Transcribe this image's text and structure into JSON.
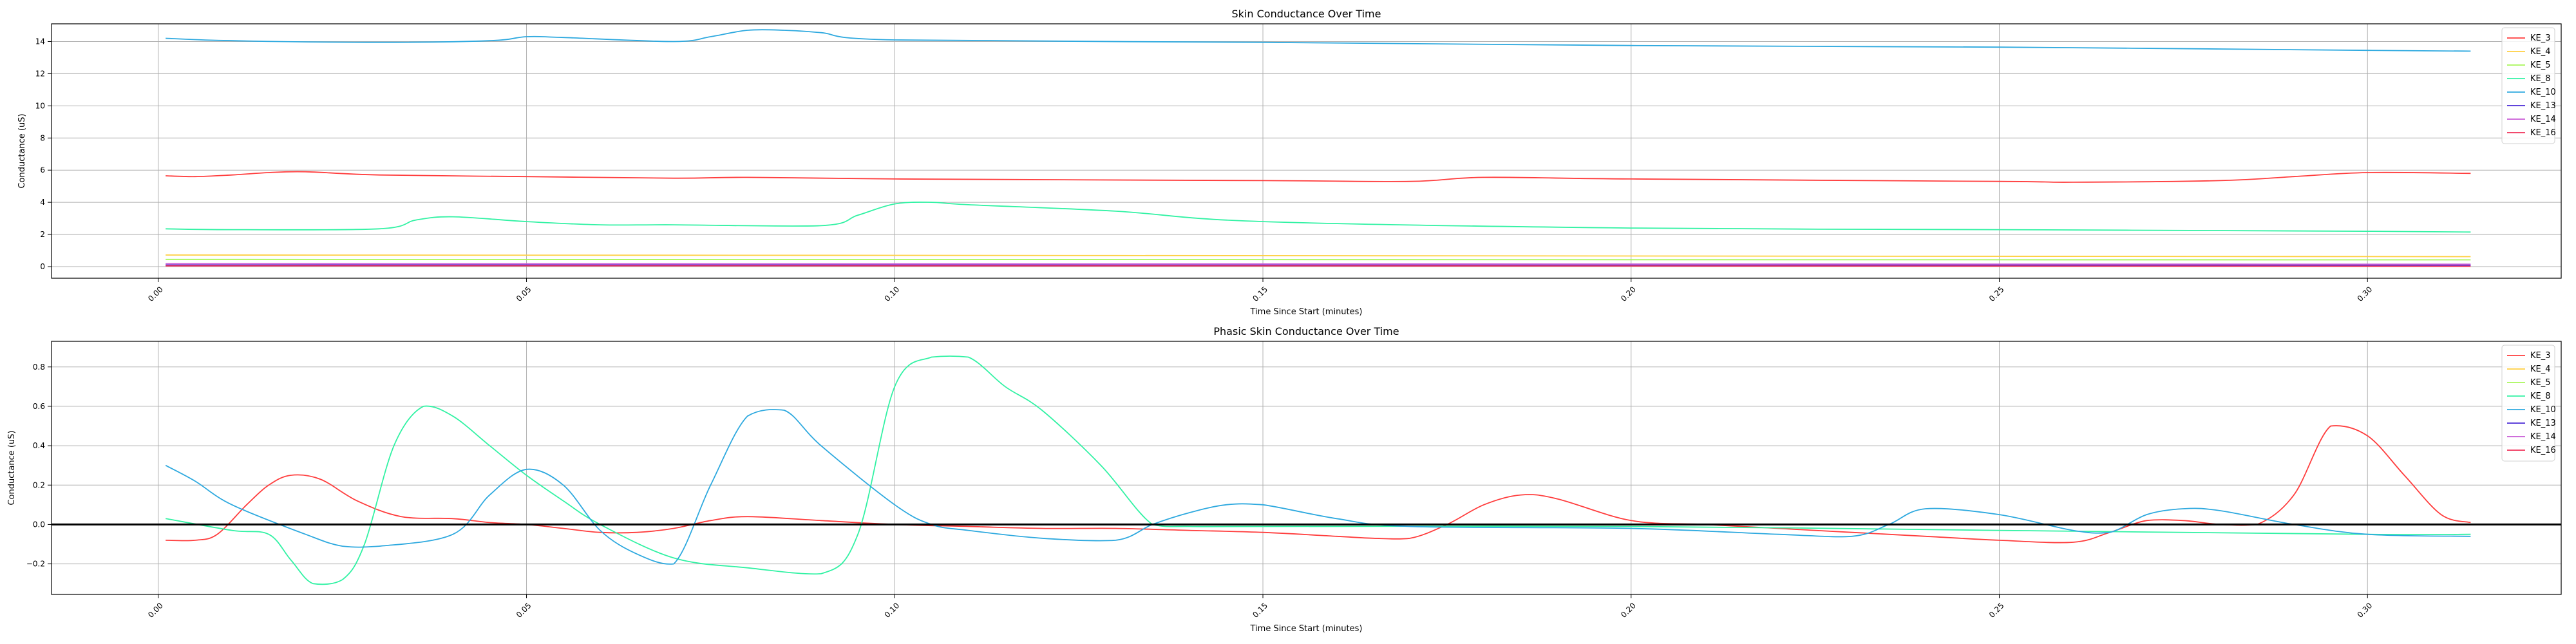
{
  "chart_data": [
    {
      "type": "line",
      "title": "Skin Conductance Over Time",
      "xlabel": "Time Since Start (minutes)",
      "ylabel": "Conductance (uS)",
      "xlim": [
        -0.0145,
        0.3263
      ],
      "ylim": [
        -0.72,
        15.1
      ],
      "xticks": [
        0.0,
        0.05,
        0.1,
        0.15,
        0.2,
        0.25,
        0.3
      ],
      "xtick_labels": [
        "0.00",
        "0.05",
        "0.10",
        "0.15",
        "0.20",
        "0.25",
        "0.30"
      ],
      "yticks": [
        0,
        2,
        4,
        6,
        8,
        10,
        12,
        14
      ],
      "ytick_labels": [
        "0",
        "2",
        "4",
        "6",
        "8",
        "10",
        "12",
        "14"
      ],
      "grid": true,
      "legend_position": "top-right",
      "series": [
        {
          "name": "KE_3",
          "color": "#ff3d3d",
          "x": [
            0.001,
            0.005,
            0.01,
            0.015,
            0.02,
            0.03,
            0.05,
            0.07,
            0.08,
            0.1,
            0.15,
            0.17,
            0.18,
            0.2,
            0.25,
            0.26,
            0.28,
            0.29,
            0.3,
            0.314
          ],
          "y": [
            5.65,
            5.6,
            5.7,
            5.85,
            5.9,
            5.7,
            5.6,
            5.5,
            5.55,
            5.45,
            5.35,
            5.3,
            5.55,
            5.45,
            5.3,
            5.25,
            5.35,
            5.6,
            5.85,
            5.8
          ]
        },
        {
          "name": "KE_4",
          "color": "#ffcf40",
          "x": [
            0.001,
            0.1,
            0.2,
            0.314
          ],
          "y": [
            0.72,
            0.7,
            0.66,
            0.62
          ]
        },
        {
          "name": "KE_5",
          "color": "#a8f75a",
          "x": [
            0.001,
            0.1,
            0.2,
            0.314
          ],
          "y": [
            0.45,
            0.44,
            0.43,
            0.42
          ]
        },
        {
          "name": "KE_8",
          "color": "#32f2a4",
          "x": [
            0.001,
            0.01,
            0.03,
            0.035,
            0.04,
            0.05,
            0.06,
            0.07,
            0.09,
            0.095,
            0.1,
            0.105,
            0.11,
            0.13,
            0.15,
            0.2,
            0.25,
            0.3,
            0.314
          ],
          "y": [
            2.35,
            2.3,
            2.35,
            2.9,
            3.1,
            2.8,
            2.6,
            2.6,
            2.55,
            3.2,
            3.9,
            4.0,
            3.85,
            3.45,
            2.8,
            2.4,
            2.3,
            2.2,
            2.15
          ]
        },
        {
          "name": "KE_10",
          "color": "#2ea9df",
          "x": [
            0.001,
            0.01,
            0.03,
            0.045,
            0.05,
            0.055,
            0.07,
            0.075,
            0.08,
            0.085,
            0.09,
            0.1,
            0.15,
            0.2,
            0.25,
            0.3,
            0.314
          ],
          "y": [
            14.2,
            14.05,
            13.95,
            14.05,
            14.3,
            14.25,
            14.0,
            14.3,
            14.7,
            14.7,
            14.55,
            14.1,
            13.95,
            13.75,
            13.65,
            13.45,
            13.4
          ]
        },
        {
          "name": "KE_13",
          "color": "#4a2ad6",
          "x": [
            0.001,
            0.1,
            0.2,
            0.314
          ],
          "y": [
            0.1,
            0.1,
            0.09,
            0.08
          ]
        },
        {
          "name": "KE_14",
          "color": "#c85ad6",
          "x": [
            0.001,
            0.1,
            0.2,
            0.314
          ],
          "y": [
            0.18,
            0.17,
            0.16,
            0.15
          ]
        },
        {
          "name": "KE_16",
          "color": "#f03058",
          "x": [
            0.001,
            0.1,
            0.2,
            0.314
          ],
          "y": [
            0.05,
            0.05,
            0.04,
            0.02
          ]
        }
      ]
    },
    {
      "type": "line",
      "title": "Phasic Skin Conductance Over Time",
      "xlabel": "Time Since Start (minutes)",
      "ylabel": "Conductance (uS)",
      "xlim": [
        -0.0145,
        0.3263
      ],
      "ylim": [
        -0.355,
        0.93
      ],
      "xticks": [
        0.0,
        0.05,
        0.1,
        0.15,
        0.2,
        0.25,
        0.3
      ],
      "xtick_labels": [
        "0.00",
        "0.05",
        "0.10",
        "0.15",
        "0.20",
        "0.25",
        "0.30"
      ],
      "yticks": [
        -0.2,
        0.0,
        0.2,
        0.4,
        0.6,
        0.8
      ],
      "ytick_labels": [
        "−0.2",
        "0.0",
        "0.2",
        "0.4",
        "0.6",
        "0.8"
      ],
      "grid": true,
      "zero_line": true,
      "legend_position": "top-right",
      "series": [
        {
          "name": "KE_3",
          "color": "#ff3d3d",
          "x": [
            0.001,
            0.005,
            0.008,
            0.012,
            0.015,
            0.018,
            0.022,
            0.027,
            0.033,
            0.04,
            0.045,
            0.05,
            0.055,
            0.06,
            0.065,
            0.07,
            0.075,
            0.08,
            0.09,
            0.1,
            0.11,
            0.12,
            0.13,
            0.14,
            0.15,
            0.16,
            0.165,
            0.17,
            0.175,
            0.18,
            0.185,
            0.19,
            0.2,
            0.21,
            0.22,
            0.23,
            0.24,
            0.25,
            0.26,
            0.265,
            0.27,
            0.275,
            0.28,
            0.285,
            0.29,
            0.295,
            0.3,
            0.305,
            0.31,
            0.314
          ],
          "y": [
            -0.08,
            -0.08,
            -0.05,
            0.1,
            0.2,
            0.25,
            0.23,
            0.12,
            0.04,
            0.03,
            0.01,
            0.0,
            -0.02,
            -0.04,
            -0.04,
            -0.02,
            0.02,
            0.04,
            0.02,
            0.0,
            -0.01,
            -0.02,
            -0.02,
            -0.03,
            -0.04,
            -0.06,
            -0.07,
            -0.07,
            0.0,
            0.1,
            0.15,
            0.13,
            0.02,
            0.0,
            -0.02,
            -0.04,
            -0.06,
            -0.08,
            -0.09,
            -0.04,
            0.02,
            0.02,
            0.0,
            0.0,
            0.15,
            0.5,
            0.45,
            0.25,
            0.05,
            0.01
          ]
        },
        {
          "name": "KE_4",
          "color": "#ffcf40",
          "x": [
            0.001,
            0.1,
            0.2,
            0.314
          ],
          "y": [
            0.0,
            0.0,
            0.0,
            0.0
          ]
        },
        {
          "name": "KE_5",
          "color": "#a8f75a",
          "x": [
            0.001,
            0.1,
            0.2,
            0.314
          ],
          "y": [
            0.0,
            0.0,
            0.0,
            0.0
          ]
        },
        {
          "name": "KE_8",
          "color": "#32f2a4",
          "x": [
            0.001,
            0.01,
            0.015,
            0.018,
            0.021,
            0.025,
            0.028,
            0.032,
            0.036,
            0.04,
            0.045,
            0.05,
            0.055,
            0.06,
            0.07,
            0.08,
            0.09,
            0.095,
            0.1,
            0.105,
            0.11,
            0.115,
            0.12,
            0.128,
            0.135,
            0.14,
            0.15,
            0.2,
            0.25,
            0.3,
            0.314
          ],
          "y": [
            0.03,
            -0.03,
            -0.05,
            -0.18,
            -0.3,
            -0.28,
            -0.1,
            0.4,
            0.6,
            0.55,
            0.4,
            0.25,
            0.12,
            0.0,
            -0.17,
            -0.22,
            -0.25,
            -0.05,
            0.7,
            0.85,
            0.85,
            0.7,
            0.58,
            0.3,
            0.0,
            -0.01,
            -0.01,
            -0.01,
            -0.03,
            -0.05,
            -0.05
          ]
        },
        {
          "name": "KE_10",
          "color": "#2ea9df",
          "x": [
            0.001,
            0.005,
            0.01,
            0.02,
            0.025,
            0.03,
            0.04,
            0.045,
            0.05,
            0.055,
            0.06,
            0.065,
            0.07,
            0.075,
            0.08,
            0.085,
            0.09,
            0.1,
            0.105,
            0.11,
            0.12,
            0.13,
            0.135,
            0.14,
            0.145,
            0.15,
            0.16,
            0.17,
            0.2,
            0.22,
            0.23,
            0.235,
            0.24,
            0.25,
            0.26,
            0.265,
            0.27,
            0.275,
            0.28,
            0.29,
            0.3,
            0.314
          ],
          "y": [
            0.3,
            0.22,
            0.1,
            -0.05,
            -0.11,
            -0.11,
            -0.05,
            0.15,
            0.28,
            0.2,
            -0.03,
            -0.15,
            -0.2,
            0.2,
            0.55,
            0.58,
            0.4,
            0.1,
            0.0,
            -0.03,
            -0.07,
            -0.08,
            0.0,
            0.06,
            0.1,
            0.1,
            0.03,
            -0.01,
            -0.02,
            -0.05,
            -0.06,
            0.0,
            0.08,
            0.05,
            -0.03,
            -0.04,
            0.05,
            0.08,
            0.07,
            0.0,
            -0.05,
            -0.06
          ]
        },
        {
          "name": "KE_13",
          "color": "#4a2ad6",
          "x": [
            0.001,
            0.1,
            0.2,
            0.314
          ],
          "y": [
            0.0,
            0.0,
            0.0,
            0.0
          ]
        },
        {
          "name": "KE_14",
          "color": "#c85ad6",
          "x": [
            0.001,
            0.1,
            0.2,
            0.314
          ],
          "y": [
            0.0,
            0.0,
            0.0,
            0.0
          ]
        },
        {
          "name": "KE_16",
          "color": "#f03058",
          "x": [
            0.001,
            0.1,
            0.2,
            0.314
          ],
          "y": [
            0.0,
            0.0,
            0.0,
            0.0
          ]
        }
      ]
    }
  ]
}
